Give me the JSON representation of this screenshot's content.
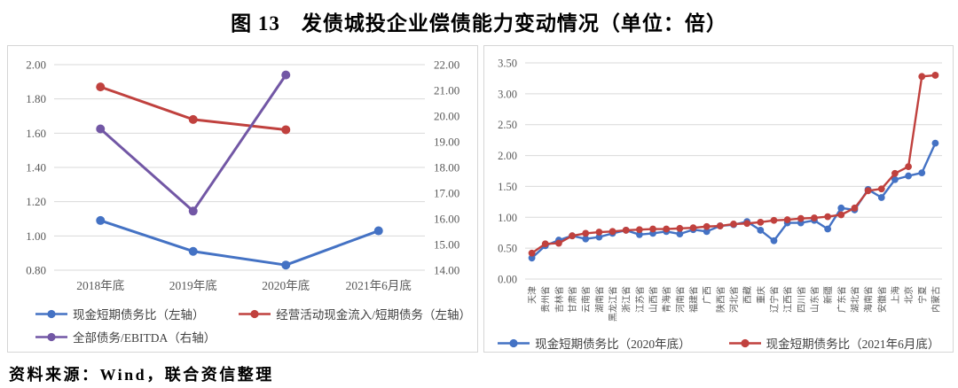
{
  "page": {
    "title": "图 13　发债城投企业偿债能力变动情况（单位：倍）",
    "source": "资料来源：Wind，联合资信整理"
  },
  "colors": {
    "blue": "#4472c4",
    "red": "#c0413e",
    "purple": "#7257a5",
    "grid": "#d9d9d9",
    "axis_text": "#595959",
    "panel_border": "#d5d5d5"
  },
  "chart_data": [
    {
      "type": "line",
      "title": "",
      "categories": [
        "2018年底",
        "2019年底",
        "2020年底",
        "2021年6月底"
      ],
      "series": [
        {
          "name": "现金短期债务比（左轴）",
          "axis": "left",
          "color_key": "blue",
          "values": [
            1.09,
            0.91,
            0.83,
            1.03
          ]
        },
        {
          "name": "经营活动现金流入/短期债务（左轴）",
          "axis": "left",
          "color_key": "red",
          "values": [
            1.87,
            1.68,
            1.62,
            null
          ]
        },
        {
          "name": "全部债务/EBITDA（右轴）",
          "axis": "right",
          "color_key": "purple",
          "values": [
            19.5,
            16.3,
            21.6,
            null
          ]
        }
      ],
      "left_axis": {
        "min": 0.8,
        "max": 2.0,
        "step": 0.2,
        "ticks": [
          "2.00",
          "1.80",
          "1.60",
          "1.40",
          "1.20",
          "1.00",
          "0.80"
        ]
      },
      "right_axis": {
        "min": 14.0,
        "max": 22.0,
        "step": 1.0,
        "ticks": [
          "22.00",
          "21.00",
          "20.00",
          "19.00",
          "18.00",
          "17.00",
          "16.00",
          "15.00",
          "14.00"
        ]
      },
      "grid": true,
      "legend_position": "bottom"
    },
    {
      "type": "line",
      "title": "",
      "categories": [
        "天津",
        "贵州省",
        "吉林省",
        "甘肃省",
        "云南省",
        "湖南省",
        "黑龙江省",
        "浙江省",
        "江苏省",
        "山西省",
        "青海省",
        "河南省",
        "福建省",
        "广西",
        "陕西省",
        "河北省",
        "西藏",
        "重庆",
        "辽宁省",
        "江西省",
        "四川省",
        "山东省",
        "新疆",
        "广东省",
        "湖北省",
        "海南省",
        "安徽省",
        "上海",
        "北京",
        "宁夏",
        "内蒙古"
      ],
      "series": [
        {
          "name": "现金短期债务比（2020年底）",
          "axis": "left",
          "color_key": "blue",
          "values": [
            0.34,
            0.54,
            0.63,
            0.7,
            0.65,
            0.68,
            0.74,
            0.79,
            0.72,
            0.74,
            0.77,
            0.73,
            0.8,
            0.77,
            0.86,
            0.88,
            0.93,
            0.79,
            0.62,
            0.91,
            0.91,
            0.95,
            0.81,
            1.15,
            1.12,
            1.45,
            1.32,
            1.61,
            1.67,
            1.72,
            2.2
          ]
        },
        {
          "name": "现金短期债务比（2021年6月底）",
          "axis": "left",
          "color_key": "red",
          "values": [
            0.42,
            0.57,
            0.58,
            0.7,
            0.74,
            0.76,
            0.77,
            0.79,
            0.8,
            0.81,
            0.81,
            0.82,
            0.83,
            0.85,
            0.86,
            0.89,
            0.9,
            0.92,
            0.95,
            0.96,
            0.98,
            0.99,
            1.01,
            1.04,
            1.15,
            1.43,
            1.46,
            1.71,
            1.82,
            3.28,
            3.3
          ]
        }
      ],
      "left_axis": {
        "min": 0.0,
        "max": 3.5,
        "step": 0.5,
        "ticks": [
          "3.50",
          "3.00",
          "2.50",
          "2.00",
          "1.50",
          "1.00",
          "0.50",
          "0.00"
        ]
      },
      "grid": true,
      "legend_position": "bottom"
    }
  ]
}
